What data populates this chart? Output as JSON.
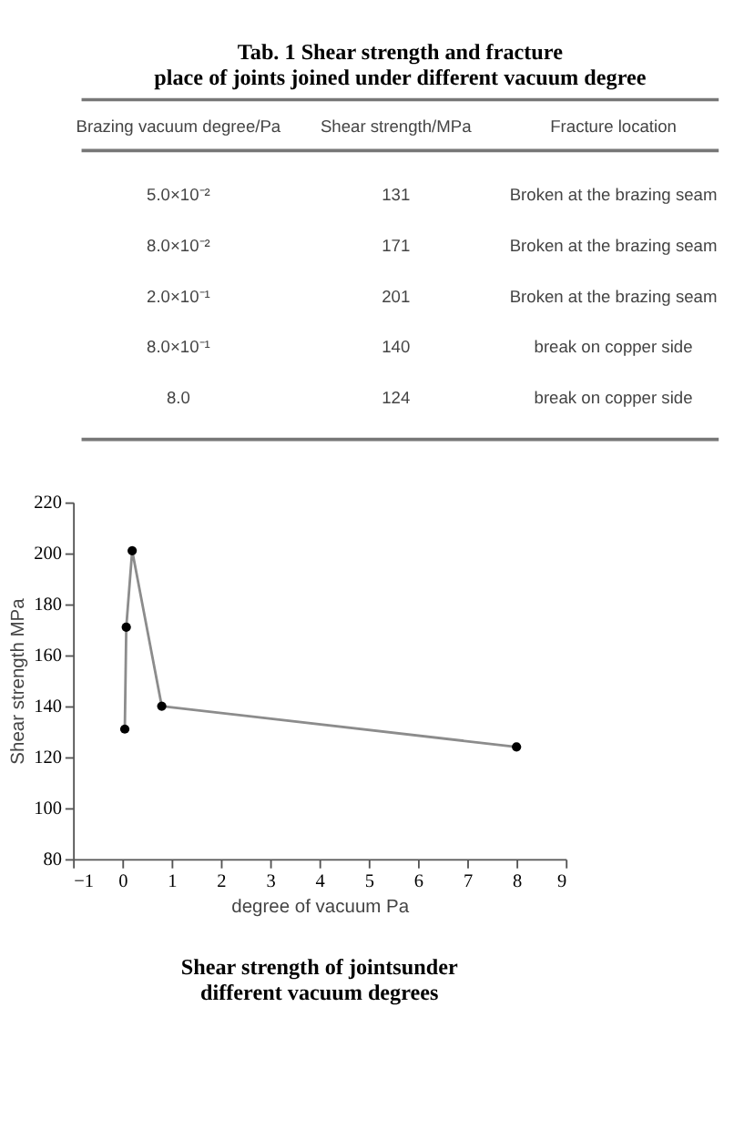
{
  "chart_data": [
    {
      "type": "other",
      "title": "Tab. 1   Shear strength and fracture place of joints joined under different vacuum degree",
      "annotations": [
        "Brazing vacuum degree/Pa",
        "Shear strength/MPa",
        "Fracture location",
        "5.0×10⁻²",
        "131",
        "Broken at the brazing seam",
        "8.0×10⁻²",
        "171",
        "Broken at the brazing seam",
        "2.0×10⁻¹",
        "201",
        "Broken at the brazing seam",
        "8.0×10⁻¹",
        "140",
        "break on copper side",
        "8.0",
        "124",
        "break on copper side"
      ]
    },
    {
      "type": "line",
      "title": "Shear strength of jointsunder different vacuum degrees",
      "xlabel": "degree of vacuum Pa",
      "ylabel": "Shear strength MPa",
      "x": [
        0.05,
        0.08,
        0.2,
        0.8,
        8
      ],
      "series": [
        {
          "color": "#8c8c8c",
          "values": [
            131,
            171,
            201,
            140,
            124
          ]
        }
      ],
      "xlim": [
        -1,
        9
      ],
      "xticks": [
        -1,
        0,
        1,
        2,
        3,
        4,
        5,
        6,
        7,
        8,
        9
      ],
      "ylim": [
        80,
        220
      ],
      "yticks": [
        80,
        100,
        120,
        140,
        160,
        180,
        200,
        220
      ],
      "marker": "circle",
      "grid": false
    }
  ]
}
